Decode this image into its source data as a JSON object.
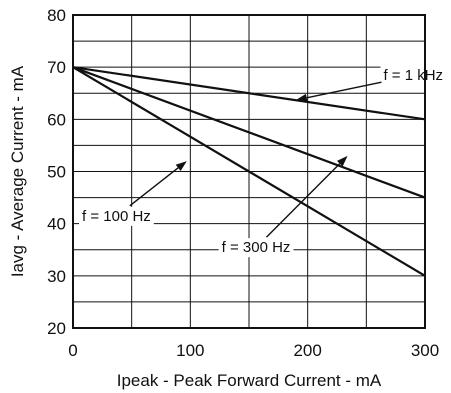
{
  "chart_data": {
    "type": "line",
    "xlabel": "Ipeak - Peak Forward Current - mA",
    "ylabel": "Iavg - Average Current - mA",
    "xlim": [
      0,
      300
    ],
    "ylim": [
      20,
      80
    ],
    "x_ticks": [
      "0",
      "100",
      "200",
      "300"
    ],
    "y_ticks": [
      "20",
      "30",
      "40",
      "50",
      "60",
      "70",
      "80"
    ],
    "grid": true,
    "series": [
      {
        "name": "f = 1 kHz",
        "x": [
          0,
          300
        ],
        "y": [
          70,
          60
        ]
      },
      {
        "name": "f = 100 Hz",
        "x": [
          0,
          300
        ],
        "y": [
          70,
          45
        ]
      },
      {
        "name": "f = 300 Hz",
        "x": [
          0,
          300
        ],
        "y": [
          70,
          30
        ]
      }
    ],
    "annotations": [
      {
        "text": "f = 1 kHz",
        "series": 0,
        "text_at": [
          290,
          68.5
        ],
        "arrow_to": [
          190,
          63.7
        ]
      },
      {
        "text": "f = 100 Hz",
        "series": 1,
        "text_at": [
          37,
          41.5
        ],
        "arrow_to": [
          97,
          52
        ]
      },
      {
        "text": "f = 300 Hz",
        "series": 2,
        "text_at": [
          156,
          35.5
        ],
        "arrow_to": [
          234,
          53
        ]
      }
    ],
    "colors": {
      "line": "#111111",
      "grid": "#111111"
    }
  }
}
